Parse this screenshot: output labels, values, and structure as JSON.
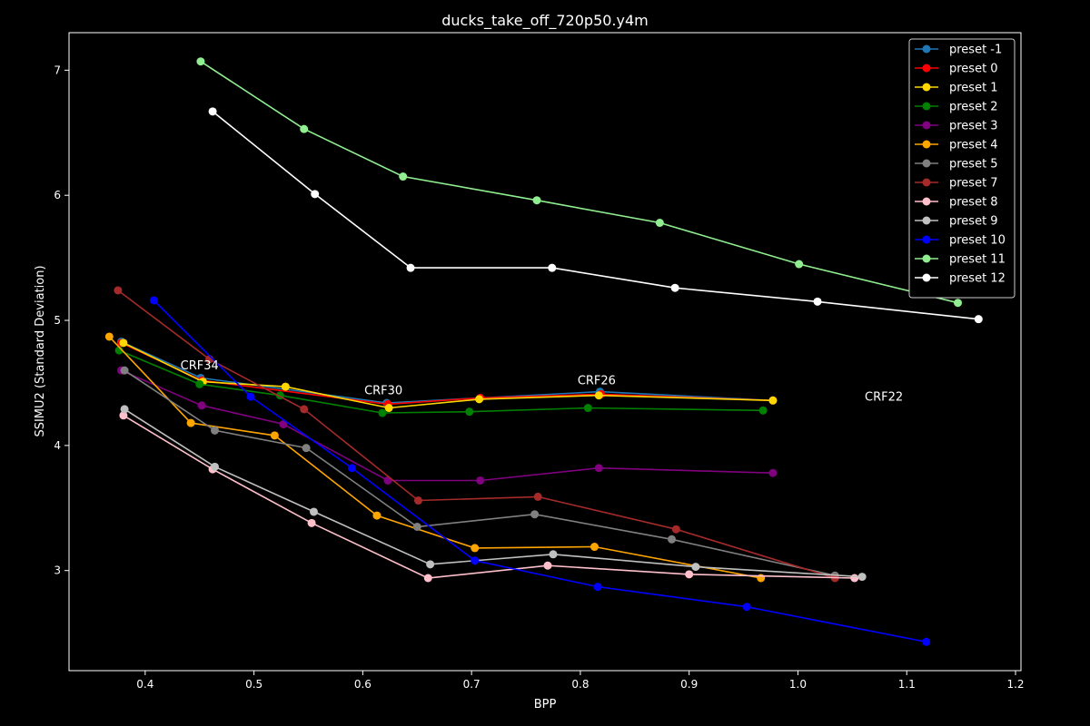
{
  "chart_data": {
    "type": "line",
    "title": "ducks_take_off_720p50.y4m",
    "xlabel": "BPP",
    "ylabel": "SSIMU2 (Standard Deviation)",
    "xlim": [
      0.33,
      1.205
    ],
    "ylim": [
      2.2,
      7.3
    ],
    "xticks": [
      0.4,
      0.5,
      0.6,
      0.7,
      0.8,
      0.9,
      1.0,
      1.1,
      1.2
    ],
    "xtick_labels": [
      "0.4",
      "0.5",
      "0.6",
      "0.7",
      "0.8",
      "0.9",
      "1.0",
      "1.1",
      "1.2"
    ],
    "yticks": [
      3,
      4,
      5,
      6,
      7
    ],
    "ytick_labels": [
      "3",
      "4",
      "5",
      "6",
      "7"
    ],
    "grid": false,
    "legend_position": "top-right",
    "background": "#000000",
    "annotations": [
      {
        "text": "CRF34",
        "x": 0.45,
        "y": 4.61
      },
      {
        "text": "CRF30",
        "x": 0.619,
        "y": 4.41
      },
      {
        "text": "CRF26",
        "x": 0.815,
        "y": 4.49
      },
      {
        "text": "CRF22",
        "x": 1.079,
        "y": 4.36
      }
    ],
    "series": [
      {
        "name": "preset -1",
        "color": "#1f77b4",
        "x": [
          0.378,
          0.451,
          0.622,
          0.708,
          0.818,
          0.977
        ],
        "y": [
          4.83,
          4.54,
          4.34,
          4.38,
          4.43,
          4.36
        ]
      },
      {
        "name": "preset 0",
        "color": "#ff0000",
        "x": [
          0.378,
          0.452,
          0.623,
          0.708,
          0.819,
          0.977
        ],
        "y": [
          4.82,
          4.52,
          4.33,
          4.38,
          4.41,
          4.36
        ]
      },
      {
        "name": "preset 1",
        "color": "#ffd700",
        "x": [
          0.38,
          0.453,
          0.529,
          0.624,
          0.707,
          0.817,
          0.977
        ],
        "y": [
          4.82,
          4.51,
          4.47,
          4.3,
          4.37,
          4.4,
          4.36
        ]
      },
      {
        "name": "preset 2",
        "color": "#008000",
        "x": [
          0.376,
          0.45,
          0.524,
          0.618,
          0.698,
          0.807,
          0.968
        ],
        "y": [
          4.76,
          4.49,
          4.4,
          4.26,
          4.27,
          4.3,
          4.28
        ]
      },
      {
        "name": "preset 3",
        "color": "#800080",
        "x": [
          0.378,
          0.452,
          0.527,
          0.623,
          0.708,
          0.817,
          0.977
        ],
        "y": [
          4.6,
          4.32,
          4.17,
          3.72,
          3.72,
          3.82,
          3.78
        ]
      },
      {
        "name": "preset 4",
        "color": "#ffa500",
        "x": [
          0.367,
          0.442,
          0.519,
          0.613,
          0.703,
          0.813,
          0.966
        ],
        "y": [
          4.87,
          4.18,
          4.08,
          3.44,
          3.18,
          3.19,
          2.94
        ]
      },
      {
        "name": "preset 5",
        "color": "#808080",
        "x": [
          0.381,
          0.464,
          0.548,
          0.65,
          0.758,
          0.884,
          1.034
        ],
        "y": [
          4.6,
          4.12,
          3.98,
          3.35,
          3.45,
          3.25,
          2.96
        ]
      },
      {
        "name": "preset 7",
        "color": "#a52a2a",
        "x": [
          0.375,
          0.459,
          0.546,
          0.651,
          0.761,
          0.888,
          1.034
        ],
        "y": [
          5.24,
          4.69,
          4.29,
          3.56,
          3.59,
          3.33,
          2.94
        ]
      },
      {
        "name": "preset 8",
        "color": "#ffc0cb",
        "x": [
          0.38,
          0.462,
          0.553,
          0.66,
          0.77,
          0.9,
          1.052
        ],
        "y": [
          4.24,
          3.81,
          3.38,
          2.94,
          3.04,
          2.97,
          2.94
        ]
      },
      {
        "name": "preset 9",
        "color": "#c0c0c0",
        "x": [
          0.381,
          0.464,
          0.555,
          0.662,
          0.775,
          0.906,
          1.059
        ],
        "y": [
          4.29,
          3.83,
          3.47,
          3.05,
          3.13,
          3.03,
          2.95
        ]
      },
      {
        "name": "preset 10",
        "color": "#0000ff",
        "x": [
          0.408,
          0.497,
          0.59,
          0.703,
          0.816,
          0.953,
          1.118
        ],
        "y": [
          5.16,
          4.39,
          3.82,
          3.08,
          2.87,
          2.71,
          2.43
        ]
      },
      {
        "name": "preset 11",
        "color": "#90ee90",
        "x": [
          0.451,
          0.546,
          0.637,
          0.76,
          0.873,
          1.001,
          1.147
        ],
        "y": [
          7.07,
          6.53,
          6.15,
          5.96,
          5.78,
          5.45,
          5.14
        ]
      },
      {
        "name": "preset 12",
        "color": "#ffffff",
        "x": [
          0.462,
          0.556,
          0.644,
          0.774,
          0.887,
          1.018,
          1.166
        ],
        "y": [
          6.67,
          6.01,
          5.42,
          5.42,
          5.26,
          5.15,
          5.01
        ]
      }
    ]
  }
}
